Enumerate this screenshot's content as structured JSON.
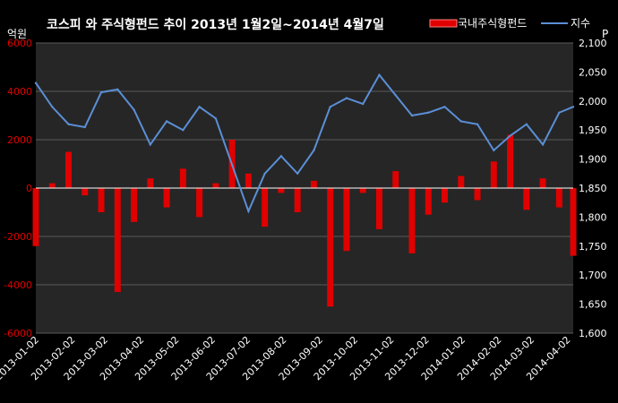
{
  "chart_data": {
    "type": "bar+line",
    "title": "코스피 와 주식형펀드 추이   2013년 1월2일~2014년 4월7일",
    "left_unit": "억원",
    "right_unit": "P",
    "legend": {
      "placement": "top-right",
      "entries": [
        {
          "name": "국내주식형펀드",
          "kind": "bar",
          "color": "#e00000"
        },
        {
          "name": "지수",
          "kind": "line",
          "color": "#5b8fd6"
        }
      ]
    },
    "grid": true,
    "colors": {
      "background": "#000000",
      "plot_bg": "#262626",
      "grid": "#5a5a5a",
      "bar": "#e00000",
      "line": "#5b8fd6",
      "tick_left": "#e00000",
      "zero_line": "#ffffff"
    },
    "y_left": {
      "min": -6000,
      "max": 6000,
      "ticks": [
        "6000",
        "4000",
        "2000",
        "0",
        "-2000",
        "-4000",
        "-6000"
      ]
    },
    "y_right": {
      "min": 1600,
      "max": 2100,
      "ticks": [
        "2,100",
        "2,050",
        "2,000",
        "1,950",
        "1,900",
        "1,850",
        "1,800",
        "1,750",
        "1,700",
        "1,650",
        "1,600"
      ]
    },
    "x_tick_labels": [
      "2013-01-02",
      "2013-02-02",
      "2013-03-02",
      "2013-04-02",
      "2013-05-02",
      "2013-06-02",
      "2013-07-02",
      "2013-08-02",
      "2013-09-02",
      "2013-10-02",
      "2013-11-02",
      "2013-12-02",
      "2014-01-02",
      "2014-02-02",
      "2014-03-02",
      "2014-04-02"
    ],
    "x_range": [
      "2013-01-02",
      "2014-04-07"
    ],
    "fund_series": {
      "name": "국내주식형펀드",
      "dates": [
        "2013-01-02",
        "2013-01-16",
        "2013-01-30",
        "2013-02-13",
        "2013-02-27",
        "2013-03-13",
        "2013-03-27",
        "2013-04-10",
        "2013-04-24",
        "2013-05-08",
        "2013-05-22",
        "2013-06-05",
        "2013-06-19",
        "2013-07-03",
        "2013-07-17",
        "2013-07-31",
        "2013-08-14",
        "2013-08-28",
        "2013-09-11",
        "2013-09-25",
        "2013-10-09",
        "2013-10-23",
        "2013-11-06",
        "2013-11-20",
        "2013-12-04",
        "2013-12-18",
        "2014-01-01",
        "2014-01-15",
        "2014-01-29",
        "2014-02-12",
        "2014-02-26",
        "2014-03-12",
        "2014-03-26",
        "2014-04-07"
      ],
      "values": [
        -2400,
        200,
        1500,
        -300,
        -1000,
        -4300,
        -1400,
        400,
        -800,
        800,
        -1200,
        200,
        2000,
        600,
        -1600,
        -200,
        -1000,
        300,
        -4900,
        -2600,
        -200,
        -1700,
        700,
        -2700,
        -1100,
        -600,
        500,
        -500,
        1100,
        2200,
        -900,
        400,
        -800,
        -2800
      ]
    },
    "index_series": {
      "name": "지수",
      "dates": [
        "2013-01-02",
        "2013-01-16",
        "2013-01-30",
        "2013-02-13",
        "2013-02-27",
        "2013-03-13",
        "2013-03-27",
        "2013-04-10",
        "2013-04-24",
        "2013-05-08",
        "2013-05-22",
        "2013-06-05",
        "2013-06-19",
        "2013-07-03",
        "2013-07-17",
        "2013-07-31",
        "2013-08-14",
        "2013-08-28",
        "2013-09-11",
        "2013-09-25",
        "2013-10-09",
        "2013-10-23",
        "2013-11-06",
        "2013-11-20",
        "2013-12-04",
        "2013-12-18",
        "2014-01-01",
        "2014-01-15",
        "2014-01-29",
        "2014-02-12",
        "2014-02-26",
        "2014-03-12",
        "2014-03-26",
        "2014-04-07"
      ],
      "values": [
        2031,
        1990,
        1960,
        1955,
        2015,
        2020,
        1985,
        1925,
        1965,
        1950,
        1990,
        1970,
        1890,
        1810,
        1875,
        1905,
        1875,
        1915,
        1990,
        2005,
        1995,
        2045,
        2010,
        1975,
        1980,
        1990,
        1965,
        1960,
        1915,
        1940,
        1960,
        1925,
        1980,
        1990
      ]
    }
  }
}
